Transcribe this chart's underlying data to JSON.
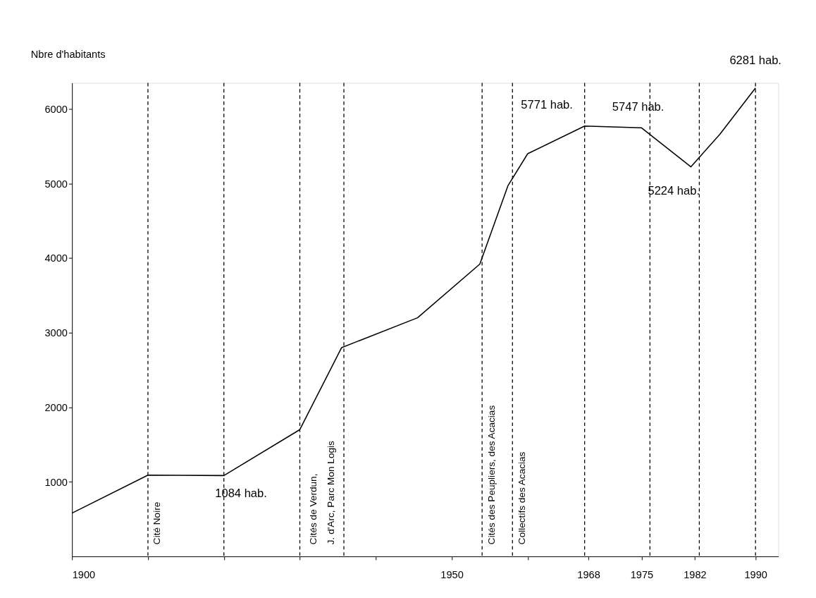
{
  "chart_data": {
    "type": "line",
    "ylabel": "Nbre d'habitants",
    "x": [
      1900,
      1910,
      1920,
      1930,
      1935.5,
      1945.5,
      1953.7,
      1957.4,
      1960,
      1967.5,
      1975,
      1981.5,
      1985.3,
      1990
    ],
    "series": [
      {
        "color": "#000000",
        "values": [
          580,
          1090,
          1084,
          1700,
          2800,
          3200,
          3920,
          4970,
          5400,
          5771,
          5747,
          5224,
          5660,
          6281
        ]
      }
    ],
    "xlim": [
      1900,
      1993
    ],
    "ylim": [
      0,
      6350
    ],
    "xticks": [
      1900,
      {
        "value": 1910,
        "label": null
      },
      {
        "value": 1920,
        "label": null
      },
      {
        "value": 1930,
        "label": null
      },
      {
        "value": 1940,
        "label": null
      },
      1950,
      {
        "value": 1960,
        "label": null
      },
      1968,
      1975,
      1982,
      1990
    ],
    "yticks": [
      1000,
      2000,
      3000,
      4000,
      5000,
      6000
    ],
    "ref_lines": [
      {
        "axis": "x",
        "value": 1910,
        "label": "Cité Noire",
        "line_style": "dashed"
      },
      {
        "axis": "x",
        "value": 1920,
        "label": null,
        "line_style": "dashed"
      },
      {
        "axis": "x",
        "value": 1930,
        "label": null,
        "line_style": "dashed"
      },
      {
        "axis": "x",
        "value": 1935.8,
        "label": "Cités de Verdun,\nJ. d'Arc, Parc Mon Logis",
        "line_style": "dashed"
      },
      {
        "axis": "x",
        "value": 1954,
        "label": "Cités des Peupliers, des Acacias",
        "line_style": "dashed"
      },
      {
        "axis": "x",
        "value": 1958,
        "label": "Collectifs des Acacias",
        "line_style": "dashed"
      },
      {
        "axis": "x",
        "value": 1967.5,
        "label": null,
        "line_style": "dashed"
      },
      {
        "axis": "x",
        "value": 1976.1,
        "label": null,
        "line_style": "dashed"
      },
      {
        "axis": "x",
        "value": 1982.6,
        "label": null,
        "line_style": "dashed"
      },
      {
        "axis": "x",
        "value": 1990,
        "label": null,
        "line_style": "dashed"
      }
    ],
    "annotations": [
      {
        "text": "1084 hab.",
        "x": 1920,
        "y": 1084
      },
      {
        "text": "5771 hab.",
        "x": 1967.5,
        "y": 5771
      },
      {
        "text": "5747 hab.",
        "x": 1975,
        "y": 5747
      },
      {
        "text": "5224 hab.",
        "x": 1981.5,
        "y": 5224
      },
      {
        "text": "6281 hab.",
        "x": 1990,
        "y": 6281
      }
    ],
    "grid": false,
    "marker": "none",
    "line_style": "solid"
  }
}
